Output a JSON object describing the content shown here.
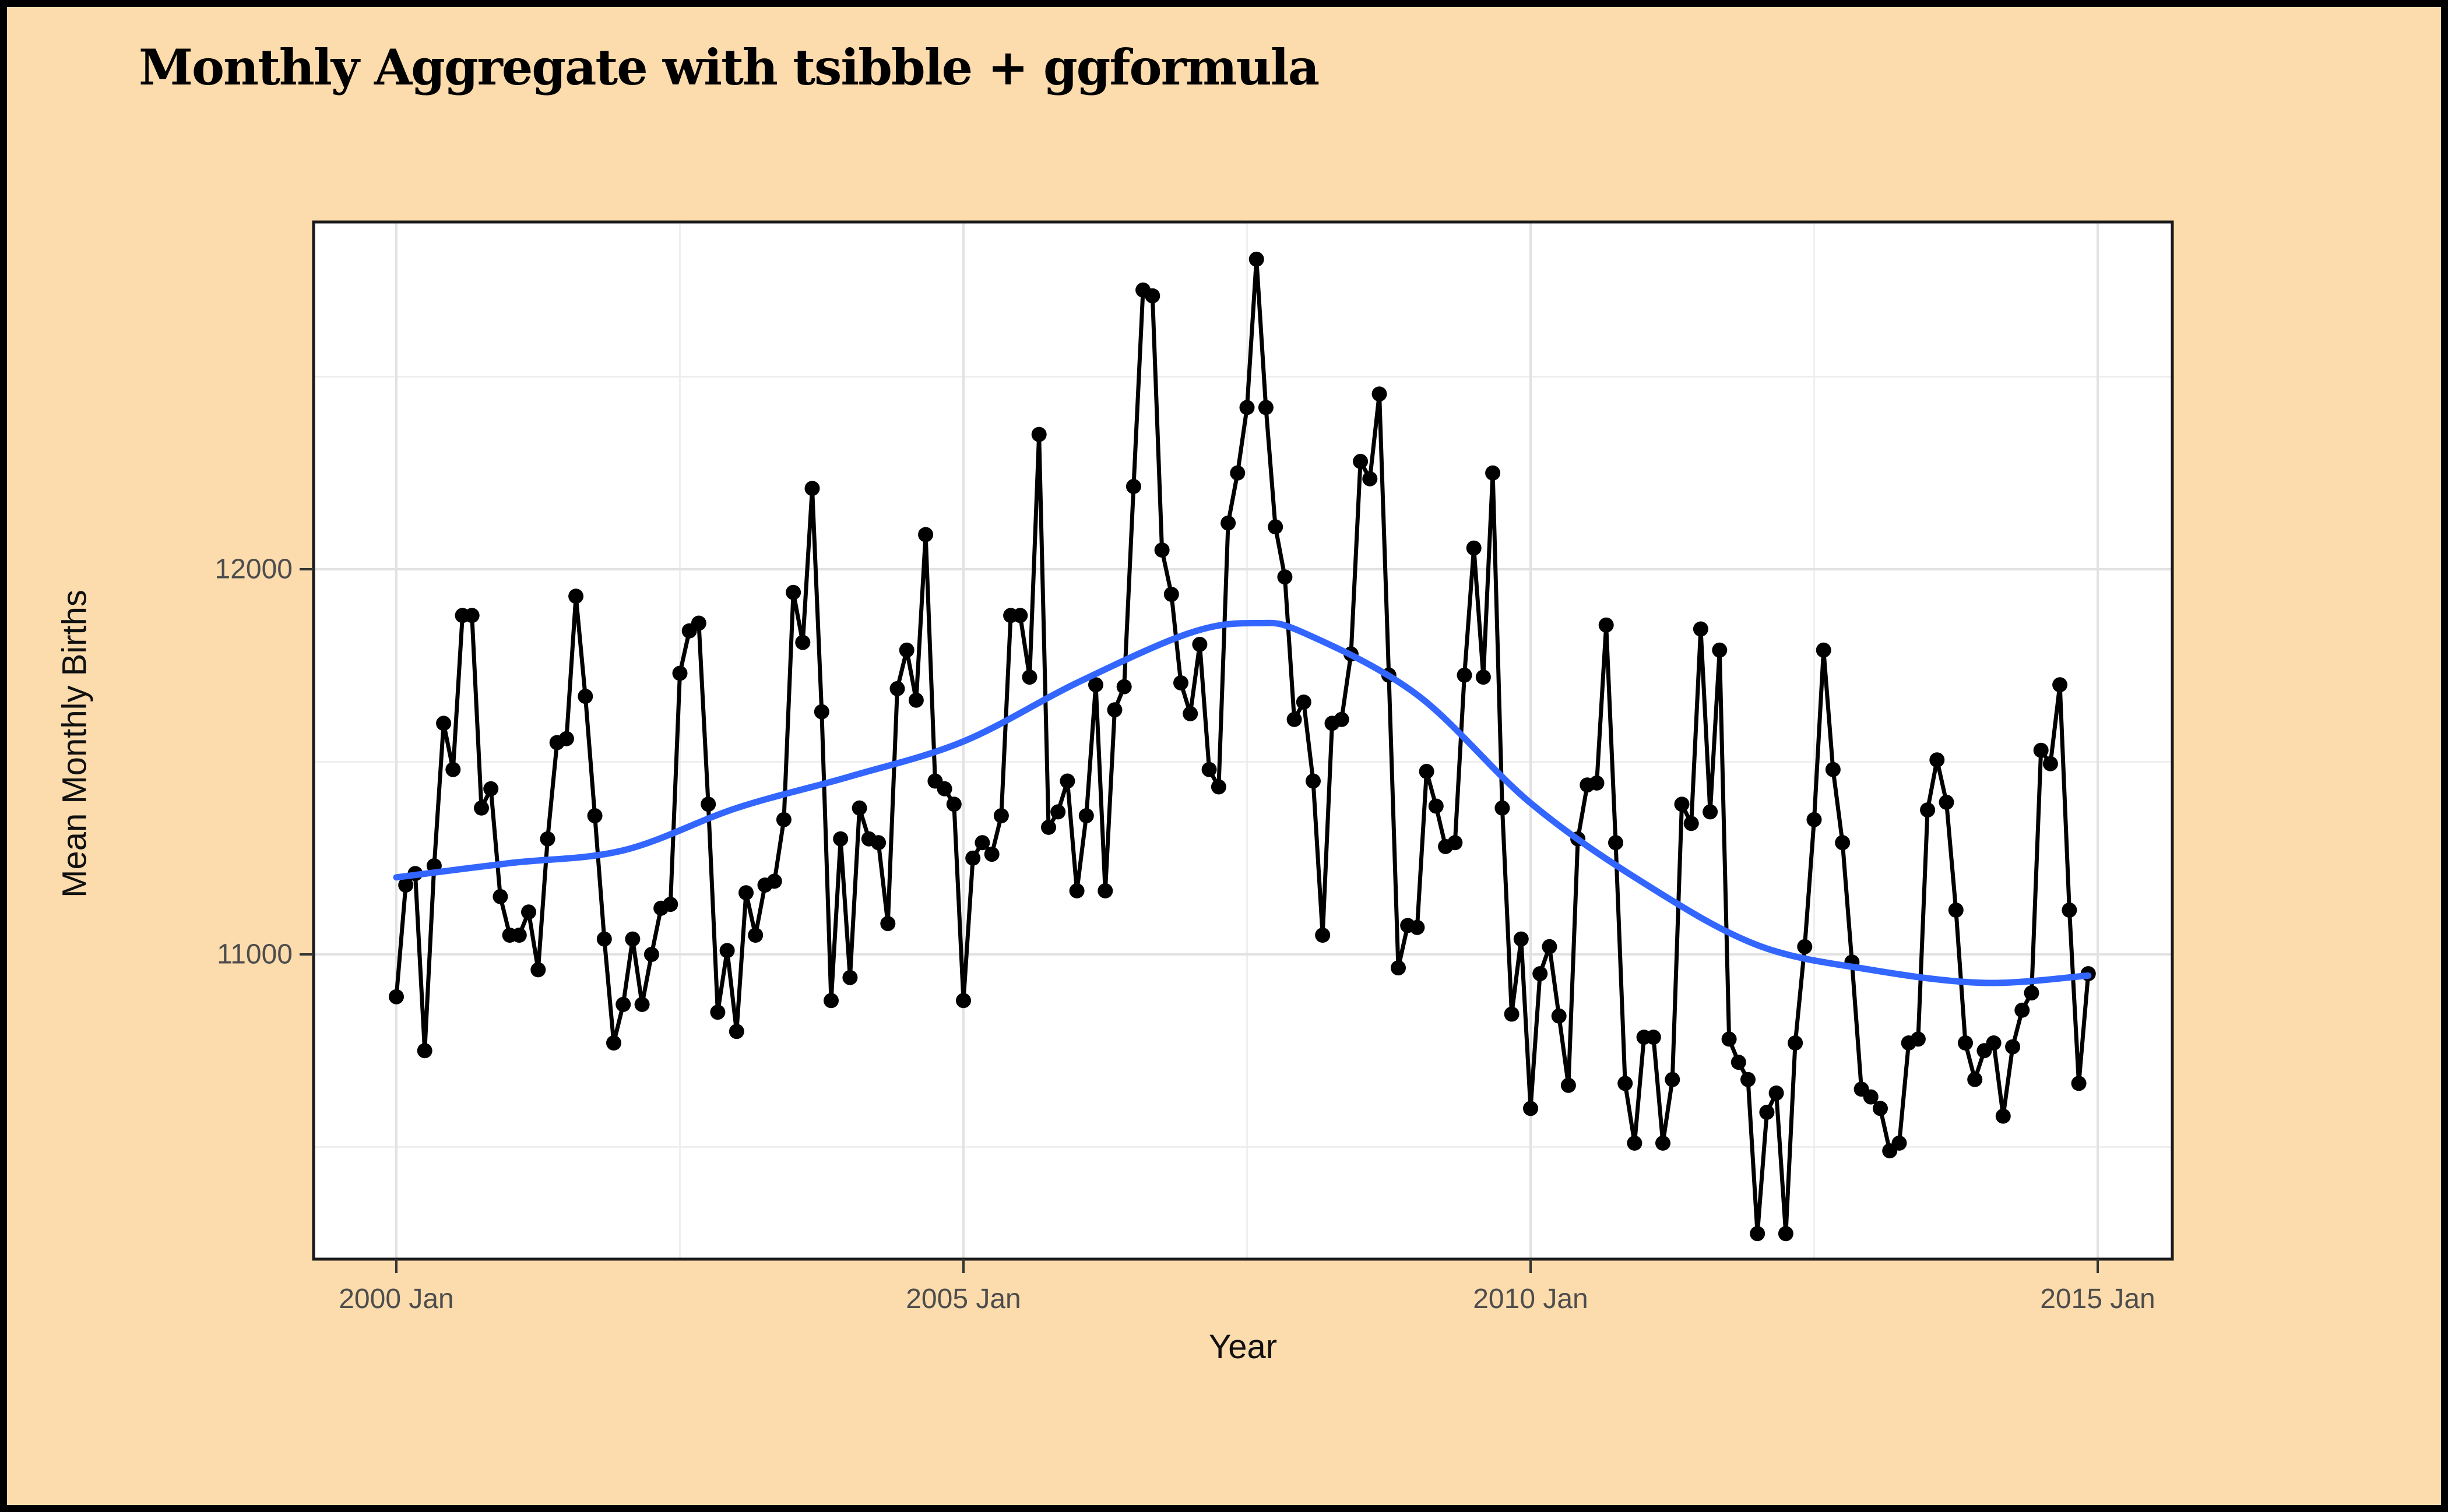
{
  "figure": {
    "title": "Monthly Aggregate with tsibble + ggformula",
    "background_color": "#fcdbac",
    "frame_color": "#000000"
  },
  "chart_data": {
    "type": "line",
    "title": "Monthly Aggregate with tsibble + ggformula",
    "xlabel": "Year",
    "ylabel": "Mean Monthly Births",
    "x_start": "2000 Jan",
    "x_end": "2014 Dec",
    "frequency": "monthly",
    "grid": true,
    "legend": "none",
    "ylim": [
      10200,
      12900
    ],
    "x_ticks": {
      "major_labels": [
        "2000 Jan",
        "2005 Jan",
        "2010 Jan",
        "2015 Jan"
      ],
      "major_month_index": [
        0,
        60,
        120,
        180
      ],
      "minor_month_index": [
        30,
        90,
        150
      ]
    },
    "y_ticks": {
      "major_labels": [
        "11000",
        "12000"
      ],
      "major_values": [
        11000,
        12000
      ],
      "minor_values": [
        10500,
        11500,
        12500
      ]
    },
    "series": [
      {
        "name": "mean_monthly_births",
        "geom": "point+line",
        "color": "#000000",
        "values": [
          10890,
          11180,
          11210,
          10750,
          11230,
          11600,
          11480,
          11880,
          11880,
          11380,
          11430,
          11150,
          11050,
          11050,
          11110,
          10960,
          11300,
          11550,
          11560,
          11930,
          11670,
          11360,
          11040,
          10770,
          10870,
          11040,
          10870,
          11000,
          11120,
          11130,
          11730,
          11840,
          11860,
          11390,
          10850,
          11010,
          10800,
          11160,
          11050,
          11180,
          11190,
          11350,
          11940,
          11810,
          12210,
          11630,
          10880,
          11300,
          10940,
          11380,
          11300,
          11290,
          11080,
          11690,
          11790,
          11660,
          12090,
          11450,
          11430,
          11390,
          10880,
          11250,
          11290,
          11260,
          11360,
          11880,
          11880,
          11720,
          12350,
          11330,
          11370,
          11450,
          11165,
          11360,
          11700,
          11165,
          11635,
          11695,
          12215,
          12725,
          12710,
          12050,
          11935,
          11705,
          11625,
          11805,
          11480,
          11435,
          12120,
          12250,
          12420,
          12805,
          12420,
          12110,
          11980,
          11610,
          11655,
          11450,
          11050,
          11600,
          11610,
          11780,
          12280,
          12235,
          12455,
          11725,
          10965,
          11075,
          11070,
          11475,
          11385,
          11280,
          11290,
          11725,
          12055,
          11720,
          12250,
          11380,
          10845,
          11040,
          10600,
          10950,
          11020,
          10840,
          10660,
          11300,
          11440,
          11445,
          11855,
          11290,
          10665,
          10510,
          10785,
          10785,
          10510,
          10675,
          11390,
          11340,
          11845,
          11370,
          11790,
          10780,
          10720,
          10675,
          10275,
          10590,
          10640,
          10275,
          10770,
          11020,
          11350,
          11790,
          11480,
          11290,
          10980,
          10650,
          10630,
          10600,
          10490,
          10510,
          10770,
          10780,
          11375,
          11505,
          11395,
          11115,
          10770,
          10675,
          10750,
          10770,
          10580,
          10760,
          10855,
          10900,
          11530,
          11495,
          11700,
          11115,
          10665,
          10950
        ]
      },
      {
        "name": "loess_smooth",
        "geom": "smooth-line",
        "color": "#3366FF",
        "month_index": [
          0,
          12,
          24,
          36,
          48,
          60,
          72,
          84,
          91,
          96,
          108,
          120,
          132,
          144,
          156,
          168,
          179
        ],
        "values": [
          11200,
          11237,
          11270,
          11380,
          11462,
          11553,
          11705,
          11835,
          11860,
          11835,
          11674,
          11393,
          11185,
          11024,
          10960,
          10926,
          10945
        ]
      }
    ]
  },
  "style": {
    "panel_fill": "#ffffff",
    "panel_border": "#1a1a1a",
    "grid_major": "#e2e2e2",
    "grid_minor": "#ececec",
    "tick_color": "#333333",
    "tick_label_color": "#4d4d4d",
    "point_color": "#000000",
    "line_color": "#000000",
    "smooth_color": "#3366FF"
  }
}
